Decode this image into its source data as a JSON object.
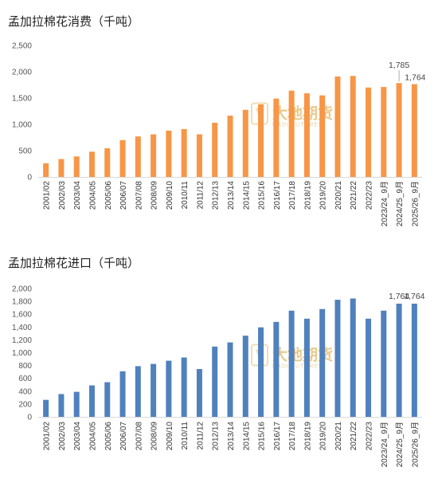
{
  "charts": [
    {
      "title": "孟加拉棉花消费（千吨）",
      "color": "#F79646",
      "watermark": {
        "cn": "大地期货",
        "en": "DADI FUTURES"
      },
      "chart_data": {
        "type": "bar",
        "categories": [
          "2001/02",
          "2002/03",
          "2003/04",
          "2004/05",
          "2005/06",
          "2006/07",
          "2007/08",
          "2008/09",
          "2009/10",
          "2010/11",
          "2011/12",
          "2012/13",
          "2013/14",
          "2014/15",
          "2015/16",
          "2016/17",
          "2017/18",
          "2018/19",
          "2019/20",
          "2020/21",
          "2021/22",
          "2022/23",
          "2023/24_9月",
          "2024/25_9月",
          "2025/26_9月"
        ],
        "values": [
          260,
          340,
          390,
          480,
          545,
          700,
          770,
          810,
          880,
          910,
          810,
          1030,
          1165,
          1275,
          1380,
          1490,
          1640,
          1590,
          1550,
          1910,
          1920,
          1700,
          1710,
          1785,
          1764
        ],
        "ylim": [
          0,
          2500
        ],
        "yticks": [
          "0",
          "500",
          "1,000",
          "1,500",
          "2,000",
          "2,500"
        ],
        "annotations": [
          {
            "category": "2024/25_9月",
            "text": "1,785"
          },
          {
            "category": "2025/26_9月",
            "text": "1,764"
          }
        ],
        "grid": false
      }
    },
    {
      "title": "孟加拉棉花进口（千吨）",
      "color": "#4F81BD",
      "watermark": {
        "cn": "大地期货",
        "en": "DADI FUTURES"
      },
      "chart_data": {
        "type": "bar",
        "categories": [
          "2001/02",
          "2002/03",
          "2003/04",
          "2004/05",
          "2005/06",
          "2006/07",
          "2007/08",
          "2008/09",
          "2009/10",
          "2010/11",
          "2011/12",
          "2012/13",
          "2013/14",
          "2014/15",
          "2015/16",
          "2016/17",
          "2017/18",
          "2018/19",
          "2019/20",
          "2020/21",
          "2021/22",
          "2022/23",
          "2023/24_9月",
          "2024/25_9月",
          "2025/26_9月"
        ],
        "values": [
          265,
          355,
          390,
          490,
          540,
          710,
          790,
          825,
          875,
          925,
          745,
          1095,
          1160,
          1265,
          1395,
          1480,
          1655,
          1530,
          1680,
          1825,
          1845,
          1530,
          1655,
          1764,
          1764
        ],
        "ylim": [
          0,
          2000
        ],
        "yticks": [
          "0",
          "200",
          "400",
          "600",
          "800",
          "1,000",
          "1,200",
          "1,400",
          "1,600",
          "1,800",
          "2,000"
        ],
        "annotations": [
          {
            "category": "2024/25_9月",
            "text": "1,764"
          },
          {
            "category": "2025/26_9月",
            "text": "1,764"
          }
        ],
        "grid": false
      }
    }
  ]
}
